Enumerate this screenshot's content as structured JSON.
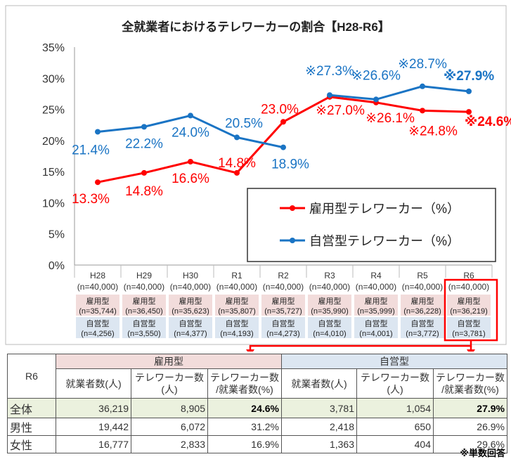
{
  "chart_data": {
    "type": "line",
    "title": "全就業者におけるテレワーカーの割合【H28-R6】",
    "categories": [
      "H28",
      "H29",
      "H30",
      "R1",
      "R2",
      "R3",
      "R4",
      "R5",
      "R6"
    ],
    "category_n": [
      "(n=40,000)",
      "(n=40,000)",
      "(n=40,000)",
      "(n=40,000)",
      "(n=40,000)",
      "(n=40,000)",
      "(n=40,000)",
      "(n=40,000)",
      "(n=40,000)"
    ],
    "ylim": [
      0,
      35
    ],
    "yticks": [
      "0%",
      "5%",
      "10%",
      "15%",
      "20%",
      "25%",
      "30%",
      "35%"
    ],
    "grid": false,
    "legend_placement": "bottom-right",
    "series": [
      {
        "name": "雇用型テレワーカー（%）",
        "color": "#ff0000",
        "values": [
          13.3,
          14.8,
          16.6,
          14.8,
          23.0,
          27.0,
          26.1,
          24.8,
          24.6
        ],
        "labels": [
          "13.3%",
          "14.8%",
          "16.6%",
          "14.8%",
          "23.0%",
          "※27.0%",
          "※26.1%",
          "※24.8%",
          "※24.6%"
        ],
        "sample_label": "雇用型",
        "sample_n": [
          "(n=35,744)",
          "(n=36,450)",
          "(n=35,623)",
          "(n=35,807)",
          "(n=35,727)",
          "(n=35,990)",
          "(n=35,999)",
          "(n=36,228)",
          "(n=36,219)"
        ]
      },
      {
        "name": "自営型テレワーカー（%）",
        "color": "#1a74c4",
        "values": [
          21.4,
          22.2,
          24.0,
          20.5,
          18.9,
          27.3,
          26.6,
          28.7,
          27.9
        ],
        "labels": [
          "21.4%",
          "22.2%",
          "24.0%",
          "20.5%",
          "18.9%",
          "※27.3%",
          "※26.6%",
          "※28.7%",
          "※27.9%"
        ],
        "sample_label": "自営型",
        "sample_n": [
          "(n=4,256)",
          "(n=3,550)",
          "(n=4,377)",
          "(n=4,193)",
          "(n=4,273)",
          "(n=4,010)",
          "(n=4,001)",
          "(n=3,772)",
          "(n=3,781)"
        ]
      }
    ]
  },
  "table": {
    "corner": "R6",
    "group1": "雇用型",
    "group2": "自営型",
    "col1": "就業者数(人)",
    "col2a": "テレワーカー数",
    "col2b": "(人)",
    "col3a": "テレワーカー数",
    "col3b": "/就業者数(%)",
    "rows": [
      {
        "label": "全体",
        "v": [
          "36,219",
          "8,905",
          "24.6%",
          "3,781",
          "1,054",
          "27.9%"
        ]
      },
      {
        "label": "男性",
        "v": [
          "19,442",
          "6,072",
          "31.2%",
          "2,418",
          "650",
          "26.9%"
        ]
      },
      {
        "label": "女性",
        "v": [
          "16,777",
          "2,833",
          "16.9%",
          "1,363",
          "404",
          "29.6%"
        ]
      }
    ]
  },
  "note": "※単数回答"
}
